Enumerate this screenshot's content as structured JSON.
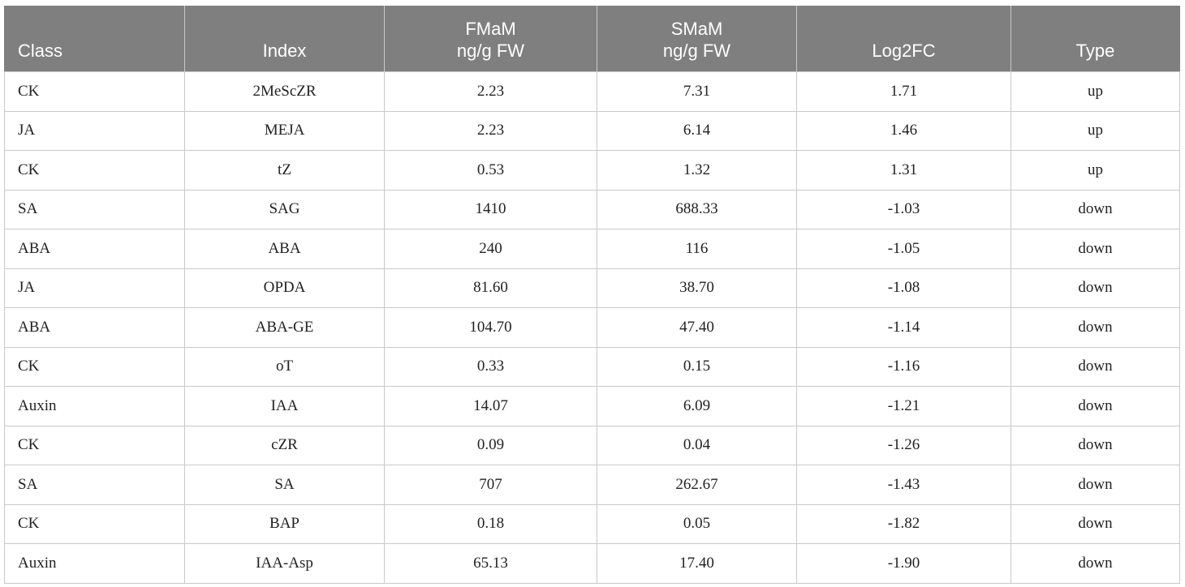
{
  "table": {
    "headers": [
      {
        "lines": [
          "Class"
        ]
      },
      {
        "lines": [
          "Index"
        ]
      },
      {
        "lines": [
          "FMaM",
          "ng/g FW"
        ]
      },
      {
        "lines": [
          "SMaM",
          "ng/g FW"
        ]
      },
      {
        "lines": [
          "Log2FC"
        ]
      },
      {
        "lines": [
          "Type"
        ]
      }
    ],
    "rows": [
      [
        "CK",
        "2MeScZR",
        "2.23",
        "7.31",
        "1.71",
        "up"
      ],
      [
        "JA",
        "MEJA",
        "2.23",
        "6.14",
        "1.46",
        "up"
      ],
      [
        "CK",
        "tZ",
        "0.53",
        "1.32",
        "1.31",
        "up"
      ],
      [
        "SA",
        "SAG",
        "1410",
        "688.33",
        "-1.03",
        "down"
      ],
      [
        "ABA",
        "ABA",
        "240",
        "116",
        "-1.05",
        "down"
      ],
      [
        "JA",
        "OPDA",
        "81.60",
        "38.70",
        "-1.08",
        "down"
      ],
      [
        "ABA",
        "ABA-GE",
        "104.70",
        "47.40",
        "-1.14",
        "down"
      ],
      [
        "CK",
        "oT",
        "0.33",
        "0.15",
        "-1.16",
        "down"
      ],
      [
        "Auxin",
        "IAA",
        "14.07",
        "6.09",
        "-1.21",
        "down"
      ],
      [
        "CK",
        "cZR",
        "0.09",
        "0.04",
        "-1.26",
        "down"
      ],
      [
        "SA",
        "SA",
        "707",
        "262.67",
        "-1.43",
        "down"
      ],
      [
        "CK",
        "BAP",
        "0.18",
        "0.05",
        "-1.82",
        "down"
      ],
      [
        "Auxin",
        "IAA-Asp",
        "65.13",
        "17.40",
        "-1.90",
        "down"
      ]
    ]
  },
  "colors": {
    "header_background": "#7f7f7f",
    "header_text": "#ffffff",
    "grid_line": "#c9c9c9",
    "body_text": "#222222"
  }
}
